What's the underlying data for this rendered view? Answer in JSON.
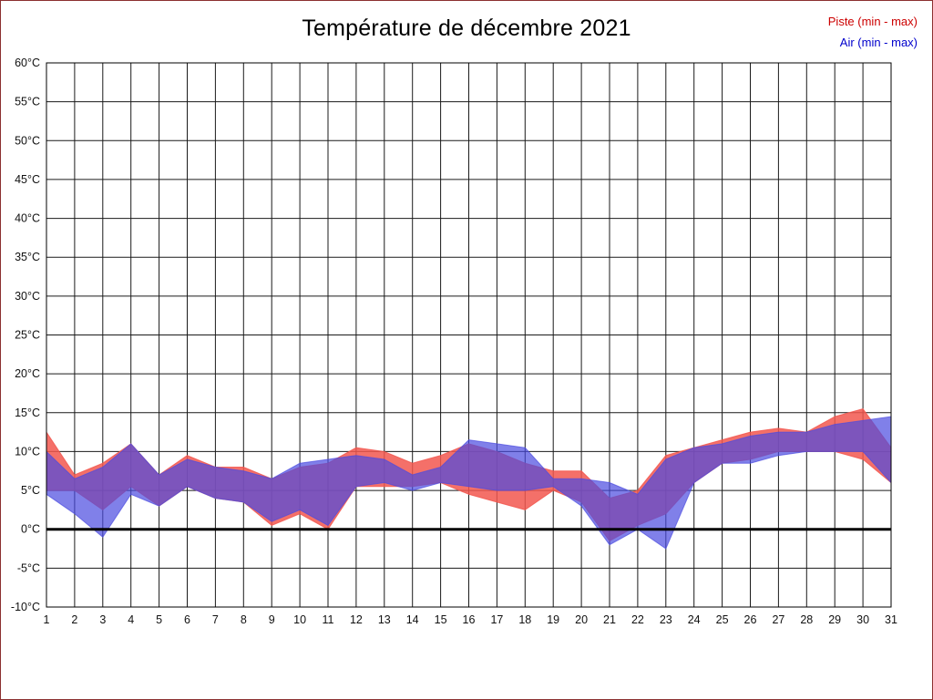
{
  "header": {
    "title": "Température de décembre 2021"
  },
  "legend": {
    "items": [
      {
        "label": "Piste (min - max)",
        "color": "#cc0000"
      },
      {
        "label": "Air (min - max)",
        "color": "#0000cc"
      }
    ]
  },
  "chart_data": {
    "type": "area",
    "title": "Température de décembre 2021",
    "ylim": [
      -10,
      60
    ],
    "ytick_step": 5,
    "grid": true,
    "zero_line_value": 0,
    "legend_position": "top-right",
    "x_ticks": [
      "1",
      "2",
      "3",
      "4",
      "5",
      "6",
      "7",
      "8",
      "9",
      "10",
      "11",
      "12",
      "13",
      "14",
      "15",
      "16",
      "17",
      "18",
      "19",
      "20",
      "21",
      "22",
      "23",
      "24",
      "25",
      "26",
      "27",
      "28",
      "29",
      "30",
      "31"
    ],
    "y_ticks": [
      "60°C",
      "55°C",
      "50°C",
      "45°C",
      "40°C",
      "35°C",
      "30°C",
      "25°C",
      "20°C",
      "15°C",
      "10°C",
      "5°C",
      "0°C",
      "-5°C",
      "-10°C"
    ],
    "series": [
      {
        "name": "Piste (min - max)",
        "fill": "#f2574f",
        "opacity": 0.85,
        "max": [
          12.5,
          7,
          8.5,
          11,
          7,
          9.5,
          8,
          8,
          6.5,
          8,
          8.5,
          10.5,
          10,
          8.5,
          9.5,
          11,
          10,
          8.5,
          7.5,
          7.5,
          4,
          5,
          9.5,
          10.5,
          11.5,
          12.5,
          13,
          12.5,
          14.5,
          15.5,
          10.5
        ],
        "min": [
          5,
          5,
          2.5,
          5.5,
          3,
          5.5,
          4,
          3.5,
          0.5,
          2,
          0,
          5.5,
          5.5,
          5.5,
          6,
          4.5,
          3.5,
          2.5,
          5,
          3.5,
          -1.5,
          0.5,
          2,
          6,
          8.5,
          9,
          10,
          10,
          10,
          9,
          6
        ]
      },
      {
        "name": "Air (min - max)",
        "fill": "#4a4ae0",
        "opacity": 0.7,
        "max": [
          10,
          6.5,
          8,
          11,
          7,
          9,
          8,
          7.5,
          6.5,
          8.5,
          9,
          9.5,
          9,
          7,
          8,
          11.5,
          11,
          10.5,
          6.5,
          6.5,
          6,
          4.5,
          9,
          10.5,
          11,
          12,
          12.5,
          12.5,
          13.5,
          14,
          14.5
        ],
        "min": [
          4.5,
          2,
          -1,
          4.5,
          3,
          5.5,
          4,
          3.5,
          1,
          2.5,
          0.5,
          5.5,
          6,
          5,
          6,
          5.5,
          5,
          5,
          5.5,
          3,
          -2,
          0,
          -2.5,
          6,
          8.5,
          8.5,
          9.5,
          10,
          10,
          10,
          6
        ]
      }
    ]
  }
}
